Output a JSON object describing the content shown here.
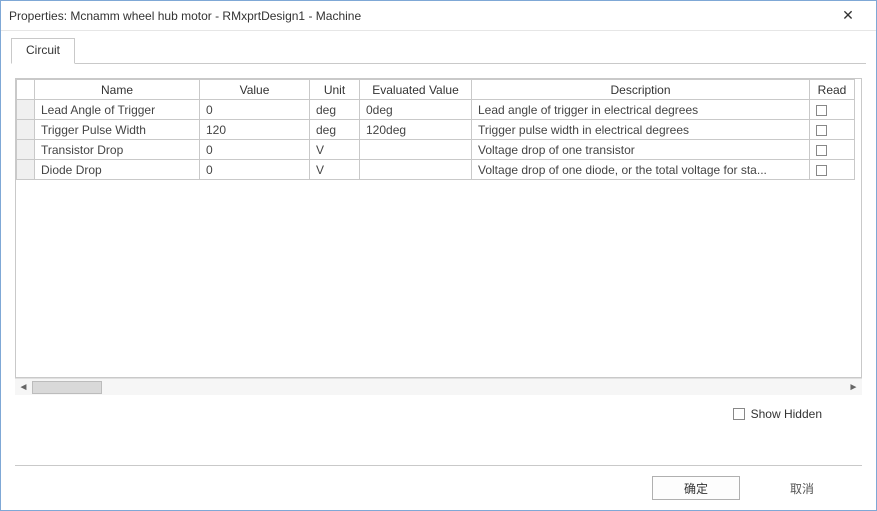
{
  "window": {
    "title": "Properties: Mcnamm wheel hub motor - RMxprtDesign1 - Machine",
    "close_glyph": "✕"
  },
  "tabs": {
    "items": [
      {
        "label": "Circuit"
      }
    ]
  },
  "grid": {
    "columns": {
      "name": "Name",
      "value": "Value",
      "unit": "Unit",
      "evaluated": "Evaluated Value",
      "description": "Description",
      "read": "Read"
    },
    "rows": [
      {
        "name": "Lead Angle of Trigger",
        "value": "0",
        "unit": "deg",
        "evaluated": "0deg",
        "description": "Lead angle of trigger in electrical degrees"
      },
      {
        "name": "Trigger Pulse Width",
        "value": "120",
        "unit": "deg",
        "evaluated": "120deg",
        "description": "Trigger pulse width in electrical degrees"
      },
      {
        "name": "Transistor Drop",
        "value": "0",
        "unit": "V",
        "evaluated": "",
        "description": "Voltage drop of one transistor"
      },
      {
        "name": "Diode Drop",
        "value": "0",
        "unit": "V",
        "evaluated": "",
        "description": "Voltage drop of one diode, or the total voltage for sta..."
      }
    ]
  },
  "controls": {
    "show_hidden_label": "Show Hidden"
  },
  "buttons": {
    "ok": "确定",
    "cancel": "取消"
  },
  "scroll": {
    "left_glyph": "◄",
    "right_glyph": "►"
  }
}
